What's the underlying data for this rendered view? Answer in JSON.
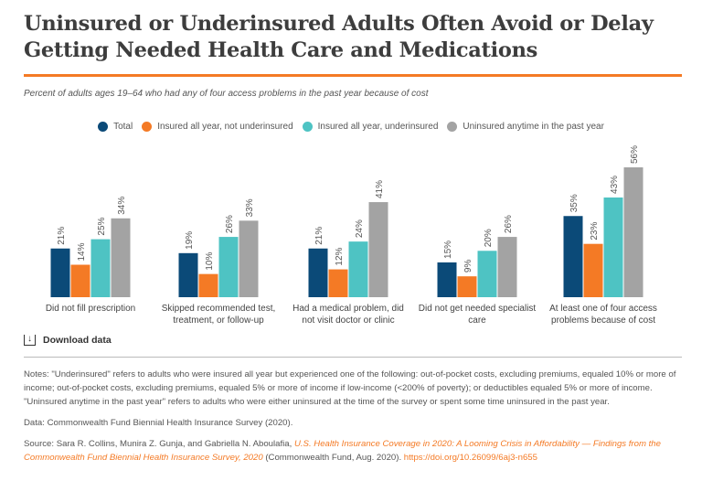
{
  "title": "Uninsured or Underinsured Adults Often Avoid or Delay Getting Needed Health Care and Medications",
  "subtitle": "Percent of adults ages 19–64 who had any of four access problems in the past year because of cost",
  "colors": {
    "accent": "#f47a25",
    "Total": "#0b4a78",
    "Insured all year, not underinsured": "#f47a25",
    "Insured all year, underinsured": "#4ec3c3",
    "Uninsured anytime in the past year": "#a3a3a3"
  },
  "chart_data": {
    "type": "bar",
    "title": "",
    "xlabel": "",
    "ylabel": "",
    "ylim": [
      0,
      60
    ],
    "grid": false,
    "legend_position": "top-center",
    "categories": [
      [
        "Did not fill prescription"
      ],
      [
        "Skipped recommended test,",
        "treatment, or follow-up"
      ],
      [
        "Had a medical problem, did",
        "not visit doctor or clinic"
      ],
      [
        "Did not get needed specialist",
        "care"
      ],
      [
        "At least one of four access",
        "problems because of cost"
      ]
    ],
    "series": [
      {
        "name": "Total",
        "color": "#0b4a78",
        "values": [
          21,
          19,
          21,
          15,
          35
        ]
      },
      {
        "name": "Insured all year, not underinsured",
        "color": "#f47a25",
        "values": [
          14,
          10,
          12,
          9,
          23
        ]
      },
      {
        "name": "Insured all year, underinsured",
        "color": "#4ec3c3",
        "values": [
          25,
          26,
          24,
          20,
          43
        ]
      },
      {
        "name": "Uninsured anytime in the past year",
        "color": "#a3a3a3",
        "values": [
          34,
          33,
          41,
          26,
          56
        ]
      }
    ]
  },
  "download_label": "Download data",
  "download_icon": "download-icon",
  "notes": "Notes: \"Underinsured\" refers to adults who were insured all year but experienced one of the following: out-of-pocket costs, excluding premiums, equaled 10% or more of income; out-of-pocket costs, excluding premiums, equaled 5% or more of income if low-income (<200% of poverty); or deductibles equaled 5% or more of income. \"Uninsured anytime in the past year\" refers to adults who were either uninsured at the time of the survey or spent some time uninsured in the past year.",
  "data_source": "Data: Commonwealth Fund Biennial Health Insurance Survey (2020).",
  "source": {
    "prefix": "Source: Sara R. Collins, Munira Z. Gunja, and Gabriella N. Aboulafia, ",
    "link_title": "U.S. Health Insurance Coverage in 2020: A Looming Crisis in Affordability — Findings from the Commonwealth Fund Biennial Health Insurance Survey, 2020",
    "suffix": " (Commonwealth Fund, Aug. 2020). ",
    "url": "https://doi.org/10.26099/6aj3-n655"
  }
}
